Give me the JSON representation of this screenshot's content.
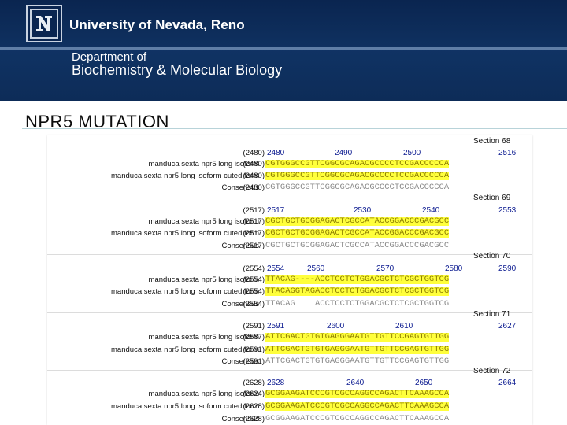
{
  "header": {
    "university": "University of Nevada, Reno",
    "dept_line1": "Department of",
    "dept_line2": "Biochemistry & Molecular Biology"
  },
  "slide": {
    "title": "NPR5 MUTATION"
  },
  "colors": {
    "banner": "#0d2c58",
    "highlight": "#ffff3c",
    "position_numbers": "#0b1a90"
  },
  "alignment": {
    "row_labels": {
      "header": "",
      "seq1": "manduca sexta npr5 long isoform",
      "seq2": "manduca sexta npr5 long isoform cuted form",
      "consensus": "Consensus"
    },
    "blocks": [
      {
        "section": "Section 68",
        "positions": [
          "2480",
          "2490",
          "2500",
          "2516"
        ],
        "nums": [
          "(2480)",
          "(2480)",
          "(2480)",
          "(2480)"
        ],
        "seq1": "CGTGGGCCGTTCGGCGCAGACGCCCCTCCGACCCCCA",
        "seq2": "CGTGGGCCGTTCGGCGCAGACGCCCCTCCGACCCCCA",
        "cons": "CGTGGGCCGTTCGGCGCAGACGCCCCTCCGACCCCCA"
      },
      {
        "section": "Section 69",
        "positions": [
          "2517",
          "2530",
          "2540",
          "2553"
        ],
        "nums": [
          "(2517)",
          "(2517)",
          "(2517)",
          "(2517)"
        ],
        "seq1": "CGCTGCTGCGGAGACTCGCCATACCGGACCCGACGCC",
        "seq2": "CGCTGCTGCGGAGACTCGCCATACCGGACCCGACGCC",
        "cons": "CGCTGCTGCGGAGACTCGCCATACCGGACCCGACGCC"
      },
      {
        "section": "Section 70",
        "positions": [
          "2554",
          "2560",
          "2570",
          "2580",
          "2590"
        ],
        "nums": [
          "(2554)",
          "(2554)",
          "(2554)",
          "(2554)"
        ],
        "seq1": "TTACAG----ACCTCCTCTGGACGCTCTCGCTGGTCG",
        "seq2": "TTACAGGTAGACCTCCTCTGGACGCTCTCGCTGGTCG",
        "cons": "TTACAG    ACCTCCTCTGGACGCTCTCGCTGGTCG"
      },
      {
        "section": "Section 71",
        "positions": [
          "2591",
          "2600",
          "2610",
          "2627"
        ],
        "nums": [
          "(2591)",
          "(2587)",
          "(2591)",
          "(2591)"
        ],
        "seq1": "ATTCGACTGTGTGAGGGAATGTTGTTCCGAGTGTTGG",
        "seq2": "ATTCGACTGTGTGAGGGAATGTTGTTCCGAGTGTTGG",
        "cons": "ATTCGACTGTGTGAGGGAATGTTGTTCCGAGTGTTGG"
      },
      {
        "section": "Section 72",
        "positions": [
          "2628",
          "2640",
          "2650",
          "2664"
        ],
        "nums": [
          "(2628)",
          "(2624)",
          "(2628)",
          "(2628)"
        ],
        "seq1": "GCGGAAGATCCCGTCGCCAGGCCAGACTTCAAAGCCA",
        "seq2": "GCGGAAGATCCCGTCGCCAGGCCAGACTTCAAAGCCA",
        "cons": "GCGGAAGATCCCGTCGCCAGGCCAGACTTCAAAGCCA"
      }
    ]
  }
}
